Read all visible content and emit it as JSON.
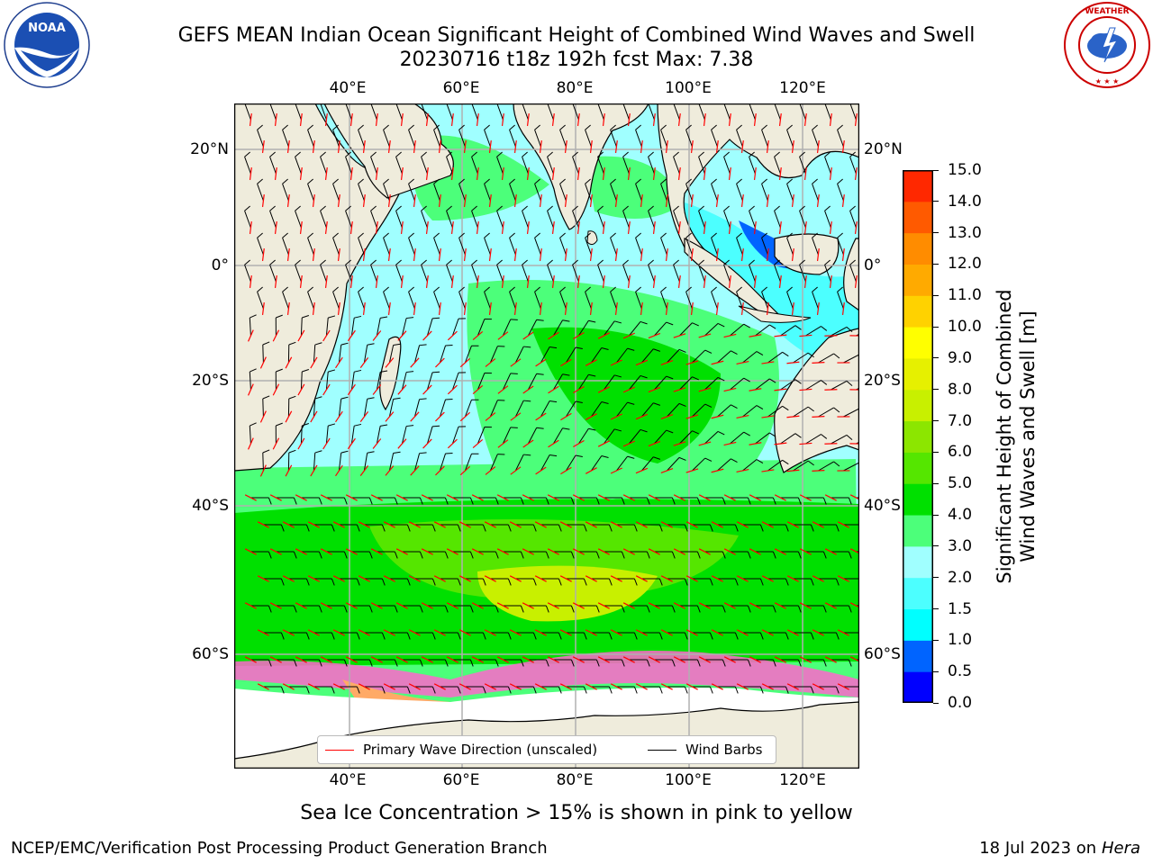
{
  "header": {
    "title": "GEFS MEAN Indian Ocean Significant Height of Combined Wind Waves and Swell",
    "subtitle": "20230716 t18z 192h fcst   Max: 7.38"
  },
  "logos": {
    "left": {
      "name": "NOAA",
      "ring_text": "NATIONAL OCEANIC AND ATMOSPHERIC ADMINISTRATION · U.S. DEPARTMENT OF COMMERCE"
    },
    "right": {
      "name": "NATIONAL WEATHER SERVICE"
    }
  },
  "map": {
    "top_lon_ticks": [
      "40°E",
      "60°E",
      "80°E",
      "100°E",
      "120°E"
    ],
    "bottom_lon_ticks": [
      "40°E",
      "60°E",
      "80°E",
      "100°E",
      "120°E"
    ],
    "left_lat_ticks": [
      "20°N",
      "0°",
      "20°S",
      "40°S",
      "60°S"
    ],
    "right_lat_ticks": [
      "20°N",
      "0°",
      "20°S",
      "40°S",
      "60°S"
    ],
    "land_color": "#efecdc",
    "grid_color": "#b0b0b0"
  },
  "legend": {
    "primary_wave": "Primary Wave Direction (unscaled)",
    "wind_barbs": "Wind Barbs",
    "primary_wave_color": "#ff0000",
    "wind_barbs_color": "#000000"
  },
  "colorbar": {
    "label_line1": "Significant Height of Combined",
    "label_line2": "Wind Waves and Swell [m]",
    "ticks": [
      "15.0",
      "14.0",
      "13.0",
      "12.0",
      "11.0",
      "10.0",
      "9.0",
      "8.0",
      "7.0",
      "6.0",
      "5.0",
      "4.0",
      "3.0",
      "2.0",
      "1.5",
      "1.0",
      "0.5",
      "0.0"
    ],
    "colors_bottom_to_top": [
      "#0000ff",
      "#0064ff",
      "#00ffff",
      "#4cffff",
      "#a0ffff",
      "#4cff7a",
      "#00e000",
      "#55e600",
      "#8ce600",
      "#c8f000",
      "#e6f000",
      "#ffff00",
      "#ffd200",
      "#ffaa00",
      "#ff8c00",
      "#ff5a00",
      "#ff2800"
    ]
  },
  "caption": "Sea Ice Concentration > 15% is shown in pink to yellow",
  "footer": {
    "left": "NCEP/EMC/Verification Post Processing Product Generation Branch",
    "date": "18 Jul 2023 on",
    "host": "Hera"
  }
}
